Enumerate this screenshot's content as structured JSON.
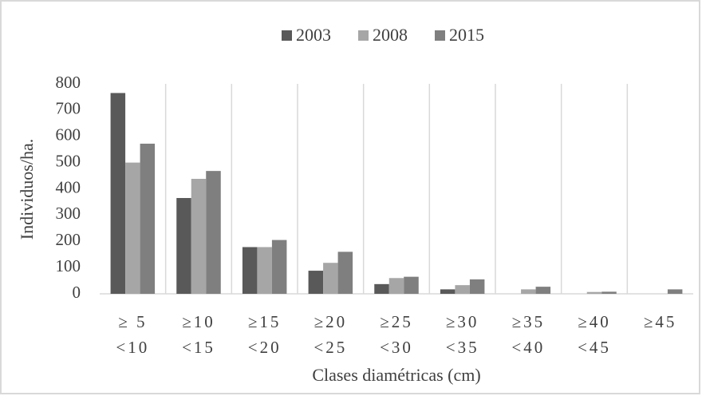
{
  "chart_data": {
    "type": "bar",
    "categories": [
      [
        "≥ 5",
        "<10"
      ],
      [
        "≥10",
        "<15"
      ],
      [
        "≥15",
        "<20"
      ],
      [
        "≥20",
        "<25"
      ],
      [
        "≥25",
        "<30"
      ],
      [
        "≥30",
        "<35"
      ],
      [
        "≥35",
        "<40"
      ],
      [
        "≥40",
        "<45"
      ],
      [
        "≥45"
      ]
    ],
    "series": [
      {
        "name": "2003",
        "color": "#595959",
        "values": [
          765,
          365,
          178,
          88,
          37,
          17,
          0,
          0,
          0
        ]
      },
      {
        "name": "2008",
        "color": "#a6a6a6",
        "values": [
          500,
          438,
          178,
          118,
          60,
          33,
          17,
          7,
          0
        ]
      },
      {
        "name": "2015",
        "color": "#7f7f7f",
        "values": [
          572,
          468,
          205,
          160,
          65,
          55,
          27,
          8,
          17
        ]
      }
    ],
    "xlabel": "Clases diamétricas (cm)",
    "ylabel": "Individuos/ha.",
    "ylim": [
      0,
      800
    ],
    "yticks": [
      0,
      100,
      200,
      300,
      400,
      500,
      600,
      700,
      800
    ],
    "legend": "top"
  }
}
